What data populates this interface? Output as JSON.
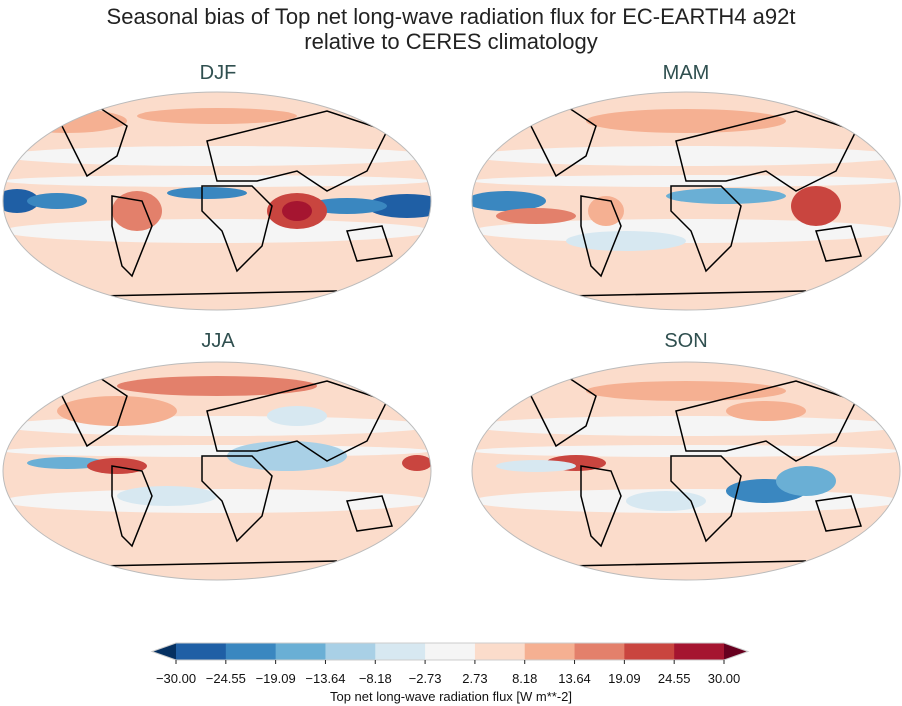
{
  "title_line1": "Seasonal bias of Top net long-wave radiation flux for EC-EARTH4 a92t",
  "title_line2": "relative to CERES climatology",
  "panels": [
    {
      "title": "DJF"
    },
    {
      "title": "MAM"
    },
    {
      "title": "JJA"
    },
    {
      "title": "SON"
    }
  ],
  "colorbar": {
    "label": "Top net long-wave radiation flux [W m**-2]",
    "ticks": [
      "−30.00",
      "−24.55",
      "−19.09",
      "−13.64",
      "−8.18",
      "−2.73",
      "2.73",
      "8.18",
      "13.64",
      "19.09",
      "24.55",
      "30.00"
    ],
    "colors": [
      "#1f5fa5",
      "#3a87c0",
      "#6aafd5",
      "#a9d0e6",
      "#d7e8f1",
      "#f5f5f5",
      "#fbdccb",
      "#f5b092",
      "#e3806b",
      "#c9453f",
      "#a51530"
    ],
    "under_color": "#053061",
    "over_color": "#67001f",
    "extend": "both",
    "colormap": "RdBu_r"
  }
}
